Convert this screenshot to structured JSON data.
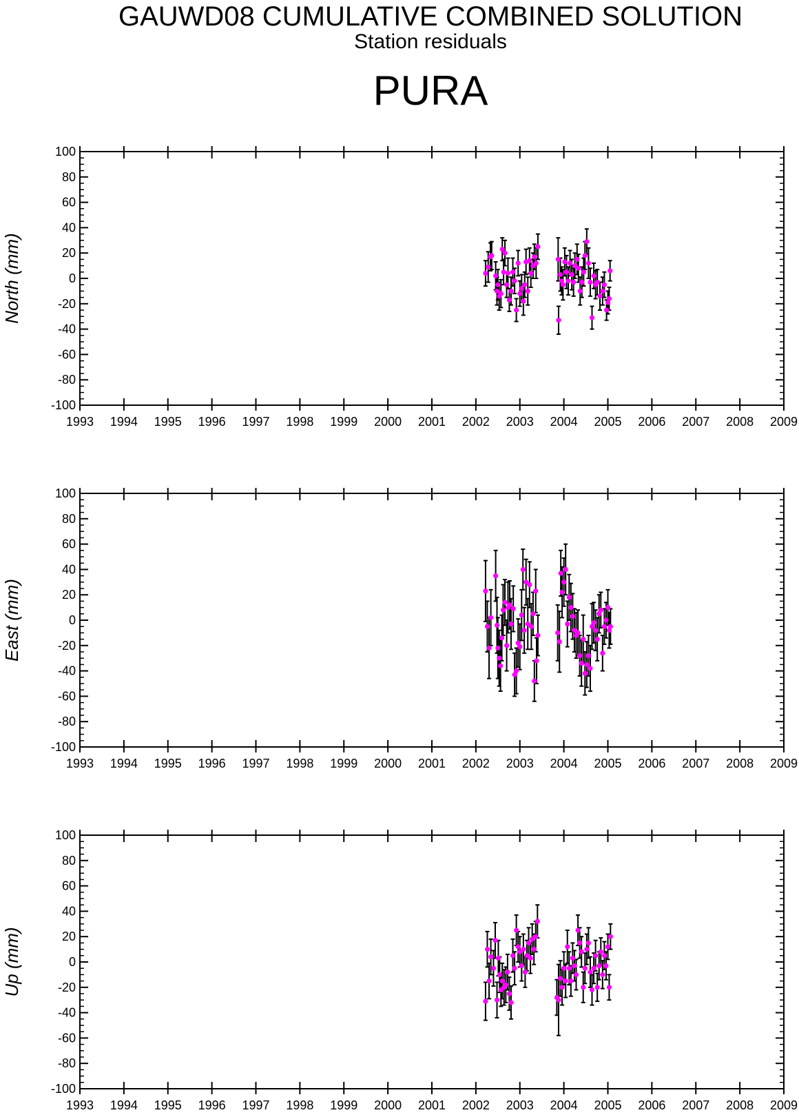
{
  "header": {
    "title": "GAUWD08 CUMULATIVE COMBINED SOLUTION",
    "subtitle": "Station residuals",
    "station": "PURA"
  },
  "colors": {
    "point": "#ff00ff",
    "errorbar": "#000000",
    "axis": "#000000"
  },
  "chart_data": [
    {
      "type": "scatter",
      "ylabel": "North (mm)",
      "xlim": [
        1993,
        2009
      ],
      "ylim": [
        -100,
        100
      ],
      "xticks": [
        "1993",
        "1994",
        "1995",
        "1996",
        "1997",
        "1998",
        "1999",
        "2000",
        "2001",
        "2002",
        "2003",
        "2004",
        "2005",
        "2006",
        "2007",
        "2008",
        "2009"
      ],
      "yticks": [
        "100",
        "80",
        "60",
        "40",
        "20",
        "0",
        "-20",
        "-40",
        "-60",
        "-80",
        "-100"
      ],
      "points": [
        [
          2002.22,
          4,
          10
        ],
        [
          2002.28,
          9,
          12
        ],
        [
          2002.33,
          17,
          11
        ],
        [
          2002.36,
          18,
          11
        ],
        [
          2002.45,
          2,
          11
        ],
        [
          2002.48,
          -10,
          11
        ],
        [
          2002.5,
          -5,
          12
        ],
        [
          2002.53,
          -14,
          11
        ],
        [
          2002.57,
          -12,
          11
        ],
        [
          2002.6,
          23,
          9
        ],
        [
          2002.63,
          5,
          10
        ],
        [
          2002.66,
          20,
          10
        ],
        [
          2002.7,
          -5,
          10
        ],
        [
          2002.73,
          4,
          12
        ],
        [
          2002.76,
          -17,
          9
        ],
        [
          2002.8,
          -10,
          11
        ],
        [
          2002.84,
          5,
          11
        ],
        [
          2002.88,
          -2,
          10
        ],
        [
          2002.92,
          -25,
          9
        ],
        [
          2002.96,
          12,
          10
        ],
        [
          2003.0,
          -12,
          10
        ],
        [
          2003.04,
          -8,
          11
        ],
        [
          2003.08,
          -18,
          11
        ],
        [
          2003.11,
          -5,
          10
        ],
        [
          2003.14,
          13,
          10
        ],
        [
          2003.18,
          -10,
          11
        ],
        [
          2003.22,
          14,
          10
        ],
        [
          2003.25,
          4,
          11
        ],
        [
          2003.3,
          10,
          10
        ],
        [
          2003.33,
          17,
          10
        ],
        [
          2003.37,
          12,
          12
        ],
        [
          2003.41,
          25,
          10
        ],
        [
          2003.87,
          15,
          17
        ],
        [
          2003.88,
          -33,
          11
        ],
        [
          2003.92,
          3,
          13
        ],
        [
          2003.95,
          -2,
          11
        ],
        [
          2003.98,
          -5,
          12
        ],
        [
          2004.02,
          13,
          11
        ],
        [
          2004.06,
          5,
          13
        ],
        [
          2004.1,
          -2,
          11
        ],
        [
          2004.14,
          12,
          10
        ],
        [
          2004.18,
          3,
          12
        ],
        [
          2004.22,
          -3,
          11
        ],
        [
          2004.25,
          10,
          10
        ],
        [
          2004.3,
          15,
          12
        ],
        [
          2004.33,
          8,
          11
        ],
        [
          2004.37,
          -10,
          11
        ],
        [
          2004.41,
          -3,
          12
        ],
        [
          2004.45,
          5,
          11
        ],
        [
          2004.48,
          18,
          11
        ],
        [
          2004.52,
          29,
          10
        ],
        [
          2004.56,
          12,
          12
        ],
        [
          2004.6,
          -3,
          11
        ],
        [
          2004.64,
          -31,
          9
        ],
        [
          2004.68,
          2,
          10
        ],
        [
          2004.72,
          -5,
          11
        ],
        [
          2004.76,
          -3,
          10
        ],
        [
          2004.82,
          -14,
          11
        ],
        [
          2004.88,
          -10,
          11
        ],
        [
          2004.92,
          -5,
          10
        ],
        [
          2004.97,
          -25,
          8
        ],
        [
          2005.0,
          -19,
          9
        ],
        [
          2005.03,
          -16,
          9
        ],
        [
          2005.05,
          6,
          8
        ]
      ]
    },
    {
      "type": "scatter",
      "ylabel": "East (mm)",
      "xlim": [
        1993,
        2009
      ],
      "ylim": [
        -100,
        100
      ],
      "xticks": [
        "1993",
        "1994",
        "1995",
        "1996",
        "1997",
        "1998",
        "1999",
        "2000",
        "2001",
        "2002",
        "2003",
        "2004",
        "2005",
        "2006",
        "2007",
        "2008",
        "2009"
      ],
      "yticks": [
        "100",
        "80",
        "60",
        "40",
        "20",
        "0",
        "-20",
        "-40",
        "-60",
        "-80",
        "-100"
      ],
      "points": [
        [
          2002.22,
          23,
          24
        ],
        [
          2002.26,
          -5,
          20
        ],
        [
          2002.3,
          -22,
          24
        ],
        [
          2002.34,
          2,
          22
        ],
        [
          2002.45,
          35,
          20
        ],
        [
          2002.48,
          -4,
          22
        ],
        [
          2002.5,
          -22,
          24
        ],
        [
          2002.53,
          -30,
          22
        ],
        [
          2002.56,
          -36,
          20
        ],
        [
          2002.59,
          -14,
          18
        ],
        [
          2002.62,
          8,
          20
        ],
        [
          2002.66,
          14,
          18
        ],
        [
          2002.7,
          -20,
          20
        ],
        [
          2002.73,
          10,
          20
        ],
        [
          2002.77,
          12,
          19
        ],
        [
          2002.8,
          -3,
          20
        ],
        [
          2002.85,
          9,
          18
        ],
        [
          2002.88,
          -43,
          17
        ],
        [
          2002.92,
          -40,
          18
        ],
        [
          2002.96,
          -18,
          19
        ],
        [
          2003.0,
          -21,
          18
        ],
        [
          2003.04,
          4,
          20
        ],
        [
          2003.07,
          40,
          16
        ],
        [
          2003.1,
          -8,
          18
        ],
        [
          2003.14,
          30,
          18
        ],
        [
          2003.18,
          -3,
          20
        ],
        [
          2003.22,
          28,
          18
        ],
        [
          2003.26,
          -5,
          18
        ],
        [
          2003.3,
          5,
          17
        ],
        [
          2003.33,
          -48,
          16
        ],
        [
          2003.36,
          23,
          17
        ],
        [
          2003.38,
          -32,
          18
        ],
        [
          2003.41,
          -12,
          16
        ],
        [
          2003.86,
          -10,
          22
        ],
        [
          2003.9,
          -17,
          24
        ],
        [
          2003.93,
          37,
          18
        ],
        [
          2003.96,
          22,
          20
        ],
        [
          2004.0,
          30,
          19
        ],
        [
          2004.04,
          40,
          20
        ],
        [
          2004.08,
          -3,
          18
        ],
        [
          2004.12,
          18,
          18
        ],
        [
          2004.16,
          10,
          19
        ],
        [
          2004.2,
          3,
          18
        ],
        [
          2004.24,
          -8,
          17
        ],
        [
          2004.28,
          -12,
          18
        ],
        [
          2004.32,
          -10,
          18
        ],
        [
          2004.36,
          -28,
          16
        ],
        [
          2004.4,
          -34,
          18
        ],
        [
          2004.44,
          -15,
          19
        ],
        [
          2004.48,
          -42,
          17
        ],
        [
          2004.52,
          -35,
          18
        ],
        [
          2004.56,
          -28,
          16
        ],
        [
          2004.6,
          -38,
          18
        ],
        [
          2004.64,
          -5,
          18
        ],
        [
          2004.68,
          -2,
          16
        ],
        [
          2004.72,
          -8,
          16
        ],
        [
          2004.76,
          -15,
          17
        ],
        [
          2004.8,
          5,
          15
        ],
        [
          2004.84,
          8,
          14
        ],
        [
          2004.88,
          -26,
          14
        ],
        [
          2004.92,
          -5,
          14
        ],
        [
          2004.96,
          0,
          14
        ],
        [
          2005.0,
          10,
          14
        ],
        [
          2005.03,
          -8,
          14
        ],
        [
          2005.06,
          -5,
          14
        ]
      ]
    },
    {
      "type": "scatter",
      "ylabel": "Up (mm)",
      "xlim": [
        1993,
        2009
      ],
      "ylim": [
        -100,
        100
      ],
      "xticks": [
        "1993",
        "1994",
        "1995",
        "1996",
        "1997",
        "1998",
        "1999",
        "2000",
        "2001",
        "2002",
        "2003",
        "2004",
        "2005",
        "2006",
        "2007",
        "2008",
        "2009"
      ],
      "yticks": [
        "100",
        "80",
        "60",
        "40",
        "20",
        "0",
        "-20",
        "-40",
        "-60",
        "-80",
        "-100"
      ],
      "points": [
        [
          2002.22,
          -31,
          15
        ],
        [
          2002.26,
          10,
          14
        ],
        [
          2002.3,
          -15,
          14
        ],
        [
          2002.34,
          4,
          14
        ],
        [
          2002.4,
          -5,
          14
        ],
        [
          2002.44,
          17,
          14
        ],
        [
          2002.48,
          -30,
          14
        ],
        [
          2002.51,
          3,
          14
        ],
        [
          2002.54,
          -10,
          14
        ],
        [
          2002.57,
          -22,
          13
        ],
        [
          2002.6,
          -15,
          14
        ],
        [
          2002.64,
          -20,
          14
        ],
        [
          2002.68,
          -18,
          14
        ],
        [
          2002.72,
          -8,
          14
        ],
        [
          2002.76,
          -25,
          13
        ],
        [
          2002.8,
          -32,
          13
        ],
        [
          2002.84,
          5,
          13
        ],
        [
          2002.88,
          -5,
          13
        ],
        [
          2002.92,
          25,
          12
        ],
        [
          2002.96,
          12,
          12
        ],
        [
          2003.0,
          8,
          12
        ],
        [
          2003.04,
          -3,
          12
        ],
        [
          2003.08,
          10,
          12
        ],
        [
          2003.12,
          -8,
          12
        ],
        [
          2003.16,
          5,
          12
        ],
        [
          2003.2,
          15,
          12
        ],
        [
          2003.24,
          3,
          12
        ],
        [
          2003.28,
          18,
          12
        ],
        [
          2003.32,
          10,
          12
        ],
        [
          2003.36,
          20,
          12
        ],
        [
          2003.4,
          32,
          13
        ],
        [
          2003.84,
          -28,
          14
        ],
        [
          2003.88,
          -30,
          28
        ],
        [
          2003.92,
          -13,
          14
        ],
        [
          2003.96,
          -20,
          14
        ],
        [
          2004.0,
          -5,
          13
        ],
        [
          2004.04,
          -15,
          13
        ],
        [
          2004.08,
          12,
          13
        ],
        [
          2004.12,
          -5,
          13
        ],
        [
          2004.16,
          -15,
          12
        ],
        [
          2004.2,
          3,
          12
        ],
        [
          2004.24,
          -3,
          12
        ],
        [
          2004.28,
          -10,
          12
        ],
        [
          2004.32,
          25,
          12
        ],
        [
          2004.36,
          15,
          12
        ],
        [
          2004.4,
          8,
          12
        ],
        [
          2004.44,
          -20,
          12
        ],
        [
          2004.48,
          -5,
          12
        ],
        [
          2004.52,
          10,
          12
        ],
        [
          2004.56,
          15,
          12
        ],
        [
          2004.6,
          -8,
          12
        ],
        [
          2004.64,
          -22,
          12
        ],
        [
          2004.68,
          -5,
          12
        ],
        [
          2004.72,
          5,
          12
        ],
        [
          2004.76,
          -20,
          11
        ],
        [
          2004.8,
          -3,
          11
        ],
        [
          2004.84,
          8,
          11
        ],
        [
          2004.88,
          -10,
          11
        ],
        [
          2004.92,
          5,
          11
        ],
        [
          2004.96,
          -3,
          11
        ],
        [
          2005.0,
          12,
          10
        ],
        [
          2005.03,
          -20,
          10
        ],
        [
          2005.06,
          20,
          10
        ]
      ]
    }
  ]
}
